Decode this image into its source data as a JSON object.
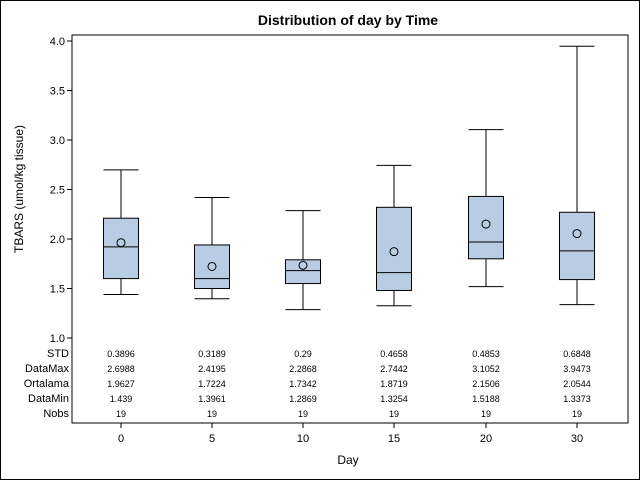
{
  "chart_data": {
    "type": "box",
    "title": "Distribution of day by Time",
    "xlabel": "Day",
    "ylabel": "TBARS (umol/kg tissue)",
    "ylim": [
      1.0,
      4.0
    ],
    "yticks": [
      "1.0",
      "1.5",
      "2.0",
      "2.5",
      "3.0",
      "3.5",
      "4.0"
    ],
    "categories": [
      "0",
      "5",
      "10",
      "15",
      "20",
      "30"
    ],
    "colors": {
      "box_fill": "#b8cce4",
      "box_stroke": "#000000"
    },
    "boxes": [
      {
        "category": "0",
        "min": 1.439,
        "q1": 1.6,
        "median": 1.92,
        "q3": 2.21,
        "max": 2.6988,
        "mean": 1.9627
      },
      {
        "category": "5",
        "min": 1.3961,
        "q1": 1.5,
        "median": 1.6,
        "q3": 1.94,
        "max": 2.4195,
        "mean": 1.7224
      },
      {
        "category": "10",
        "min": 1.2869,
        "q1": 1.55,
        "median": 1.68,
        "q3": 1.79,
        "max": 2.2868,
        "mean": 1.7342
      },
      {
        "category": "15",
        "min": 1.3254,
        "q1": 1.48,
        "median": 1.66,
        "q3": 2.32,
        "max": 2.7442,
        "mean": 1.8719
      },
      {
        "category": "20",
        "min": 1.5188,
        "q1": 1.8,
        "median": 1.97,
        "q3": 2.43,
        "max": 3.1052,
        "mean": 2.1506
      },
      {
        "category": "30",
        "min": 1.3373,
        "q1": 1.59,
        "median": 1.88,
        "q3": 2.27,
        "max": 3.9473,
        "mean": 2.0544
      }
    ],
    "stats_table": {
      "row_labels": [
        "STD",
        "DataMax",
        "Ortalama",
        "DataMin",
        "Nobs"
      ],
      "rows": [
        [
          "0.3896",
          "0.3189",
          "0.29",
          "0.4658",
          "0.4853",
          "0.6848"
        ],
        [
          "2.6988",
          "2.4195",
          "2.2868",
          "2.7442",
          "3.1052",
          "3.9473"
        ],
        [
          "1.9627",
          "1.7224",
          "1.7342",
          "1.8719",
          "2.1506",
          "2.0544"
        ],
        [
          "1.439",
          "1.3961",
          "1.2869",
          "1.3254",
          "1.5188",
          "1.3373"
        ],
        [
          "19",
          "19",
          "19",
          "19",
          "19",
          "19"
        ]
      ]
    }
  }
}
